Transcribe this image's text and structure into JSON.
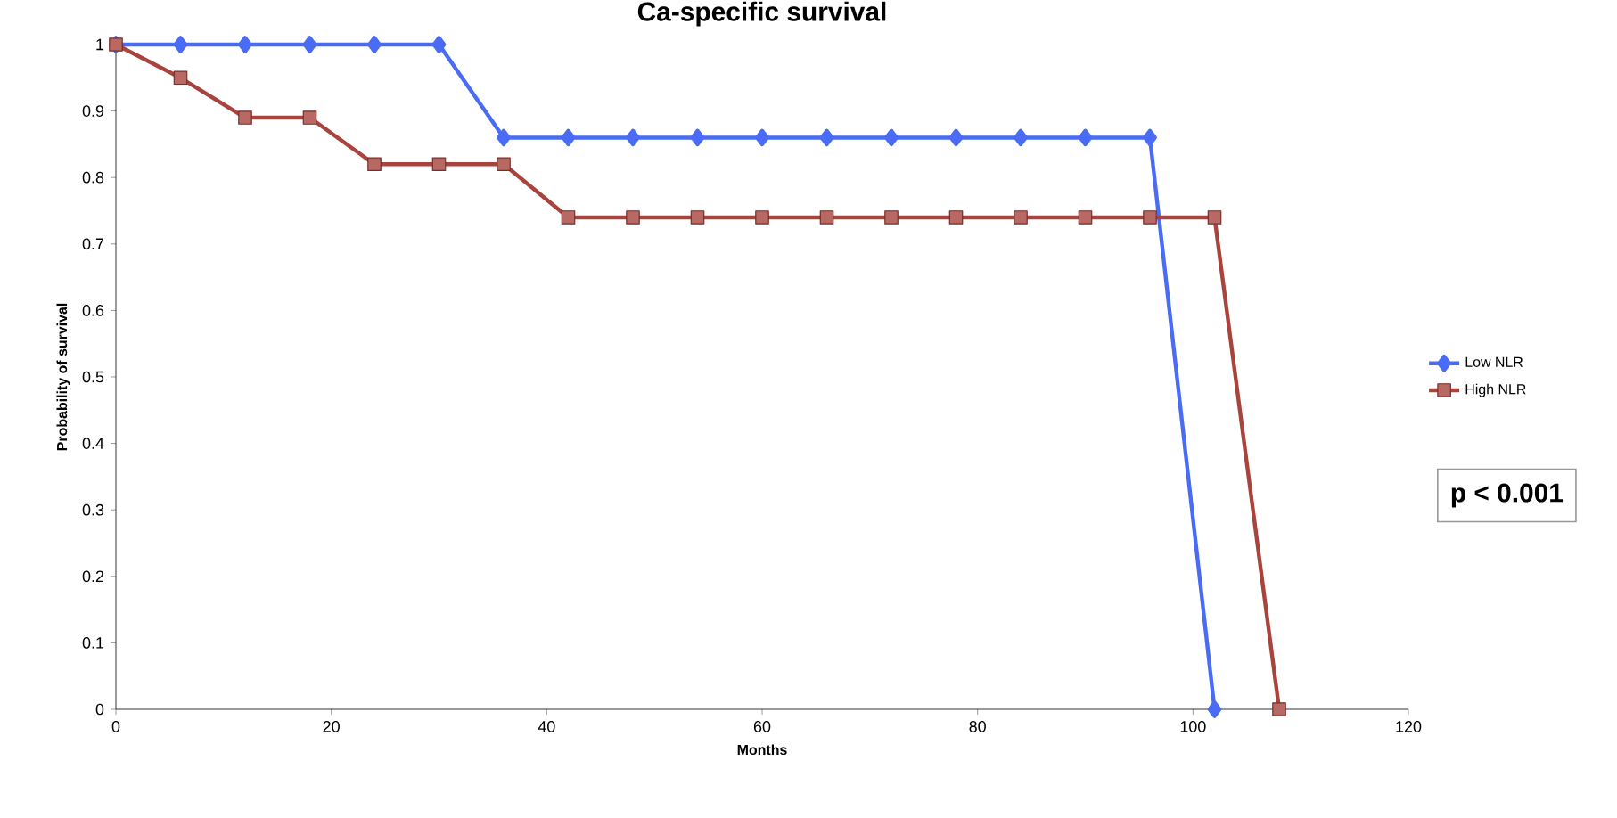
{
  "chart_data": {
    "type": "line",
    "title": "Ca-specific survival",
    "xlabel": "Months",
    "ylabel": "Probability of survival",
    "xlim": [
      0,
      120
    ],
    "xticks": [
      0,
      20,
      40,
      60,
      80,
      100,
      120
    ],
    "ylim": [
      0,
      1
    ],
    "yticks": [
      0,
      0.1,
      0.2,
      0.3,
      0.4,
      0.5,
      0.6,
      0.7,
      0.8,
      0.9,
      1
    ],
    "grid": false,
    "legend": "right",
    "series": [
      {
        "name": "Low NLR",
        "color": "#4a6cf5",
        "marker": "diamond",
        "x": [
          0,
          6,
          12,
          18,
          24,
          30,
          36,
          42,
          48,
          54,
          60,
          66,
          72,
          78,
          84,
          90,
          96,
          102
        ],
        "values": [
          1,
          1,
          1,
          1,
          1,
          1,
          0.86,
          0.86,
          0.86,
          0.86,
          0.86,
          0.86,
          0.86,
          0.86,
          0.86,
          0.86,
          0.86,
          0
        ]
      },
      {
        "name": "High NLR",
        "color": "#a8433d",
        "marker": "square",
        "x": [
          0,
          6,
          12,
          18,
          24,
          30,
          36,
          42,
          48,
          54,
          60,
          66,
          72,
          78,
          84,
          90,
          96,
          102,
          108
        ],
        "values": [
          1,
          0.95,
          0.89,
          0.89,
          0.82,
          0.82,
          0.82,
          0.74,
          0.74,
          0.74,
          0.74,
          0.74,
          0.74,
          0.74,
          0.74,
          0.74,
          0.74,
          0.74,
          0
        ]
      }
    ],
    "annotations": [
      "p < 0.001"
    ]
  }
}
